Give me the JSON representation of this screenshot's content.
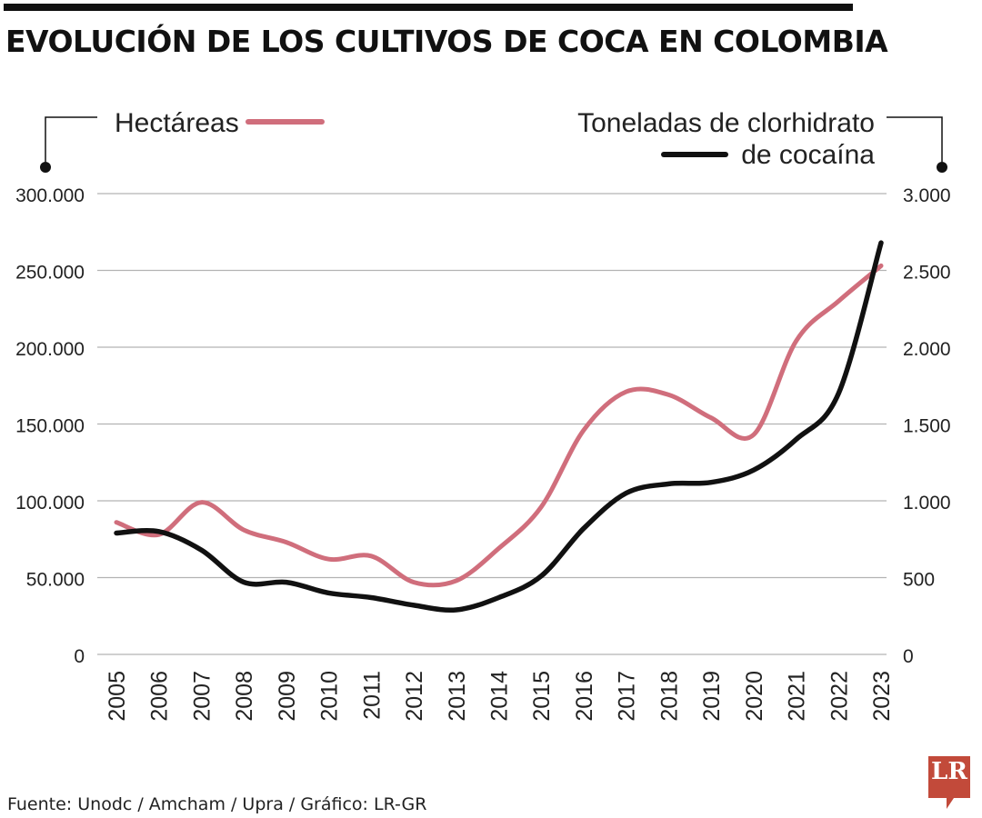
{
  "title": "EVOLUCIÓN DE LOS CULTIVOS DE COCA EN COLOMBIA",
  "source": "Fuente: Unodc / Amcham / Upra / Gráfico: LR-GR",
  "logo_text": "LR",
  "colors": {
    "hectareas": "#d06e7c",
    "toneladas": "#111111",
    "grid": "#b3b3b3",
    "logo": "#c24a3a"
  },
  "chart_data": {
    "type": "line",
    "title": "EVOLUCIÓN DE LOS CULTIVOS DE COCA EN COLOMBIA",
    "x": [
      "2005",
      "2006",
      "2007",
      "2008",
      "2009",
      "2010",
      "2011",
      "2012",
      "2013",
      "2014",
      "2015",
      "2016",
      "2017",
      "2018",
      "2019",
      "2020",
      "2021",
      "2022",
      "2023"
    ],
    "series": [
      {
        "name": "Hectáreas",
        "axis": "left",
        "values": [
          86000,
          78000,
          99000,
          81000,
          73000,
          62000,
          64000,
          47000,
          48000,
          69000,
          96000,
          146000,
          171000,
          169000,
          154000,
          143000,
          204000,
          230000,
          253000
        ]
      },
      {
        "name": "Toneladas de clorhidrato de cocaína",
        "axis": "right",
        "values": [
          790,
          800,
          680,
          470,
          470,
          400,
          370,
          320,
          290,
          370,
          510,
          820,
          1050,
          1110,
          1120,
          1200,
          1400,
          1700,
          2680
        ]
      }
    ],
    "legend": {
      "hectareas": "Hectáreas",
      "toneladas_line1": "Toneladas de clorhidrato",
      "toneladas_line2": "de cocaína"
    },
    "y_left": {
      "range": [
        0,
        300000
      ],
      "ticks": [
        0,
        50000,
        100000,
        150000,
        200000,
        250000,
        300000
      ],
      "tick_labels": [
        "0",
        "50.000",
        "100.000",
        "150.000",
        "200.000",
        "250.000",
        "300.000"
      ]
    },
    "y_right": {
      "range": [
        0,
        3000
      ],
      "ticks": [
        0,
        500,
        1000,
        1500,
        2000,
        2500,
        3000
      ],
      "tick_labels": [
        "0",
        "500",
        "1.000",
        "1.500",
        "2.000",
        "2.500",
        "3.000"
      ]
    },
    "grid": true,
    "legend_placement": "top"
  }
}
